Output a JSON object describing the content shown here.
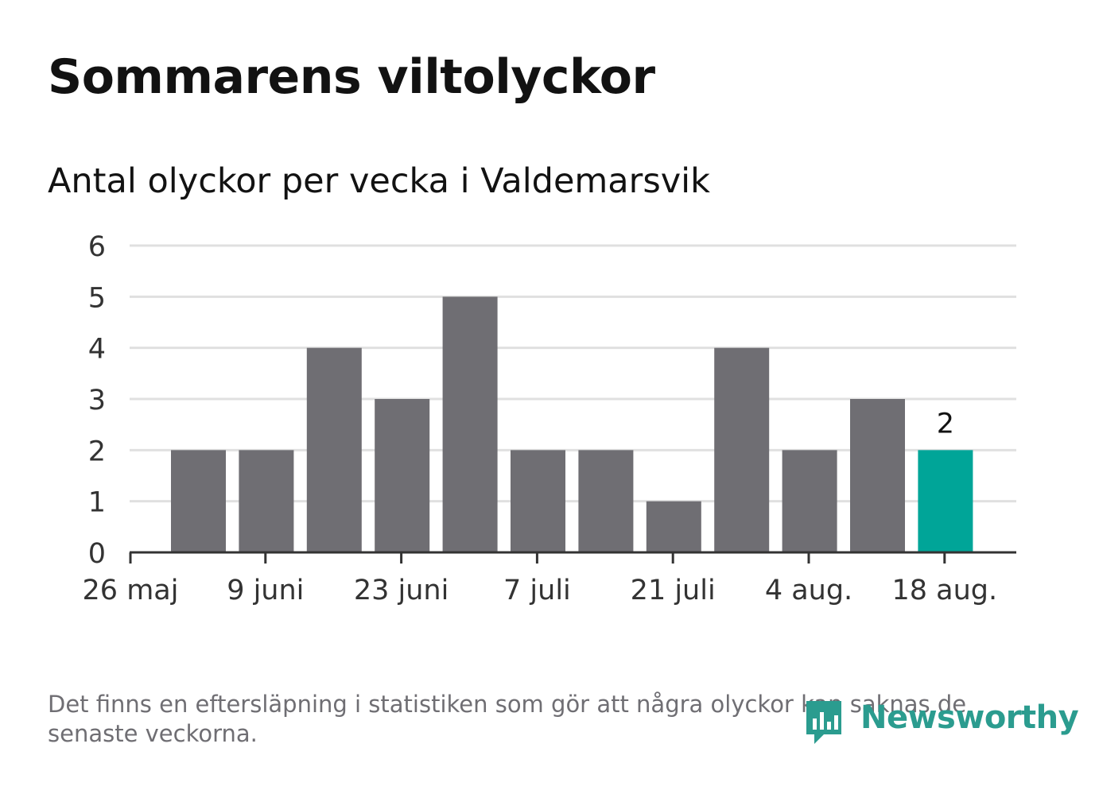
{
  "title": "Sommarens viltolyckor",
  "subtitle": "Antal olyckor per vecka i Valdemarsvik",
  "note": "Det finns en eftersläpning i statistiken som gör att några olyckor kan saknas de senaste veckorna.",
  "logo": {
    "text": "Newsworthy",
    "icon": "newsworthy-bar-icon",
    "color": "#2b9c8f"
  },
  "colors": {
    "bar": "#6f6e73",
    "highlight": "#00a598",
    "grid": "#e0e0e0",
    "axis": "#333333"
  },
  "chart_data": {
    "type": "bar",
    "title": "Sommarens viltolyckor",
    "subtitle": "Antal olyckor per vecka i Valdemarsvik",
    "xlabel": "",
    "ylabel": "",
    "ylim": [
      0,
      6
    ],
    "yticks": [
      "0",
      "1",
      "2",
      "3",
      "4",
      "5",
      "6"
    ],
    "xticks": [
      "26 maj",
      "9 juni",
      "23 juni",
      "7 juli",
      "21 juli",
      "4 aug.",
      "18 aug."
    ],
    "values": [
      2,
      2,
      4,
      3,
      5,
      2,
      2,
      1,
      4,
      2,
      3,
      2
    ],
    "highlight_index": 11,
    "data_labels": [
      {
        "index": 11,
        "text": "2"
      }
    ],
    "grid": true,
    "legend": "none"
  }
}
